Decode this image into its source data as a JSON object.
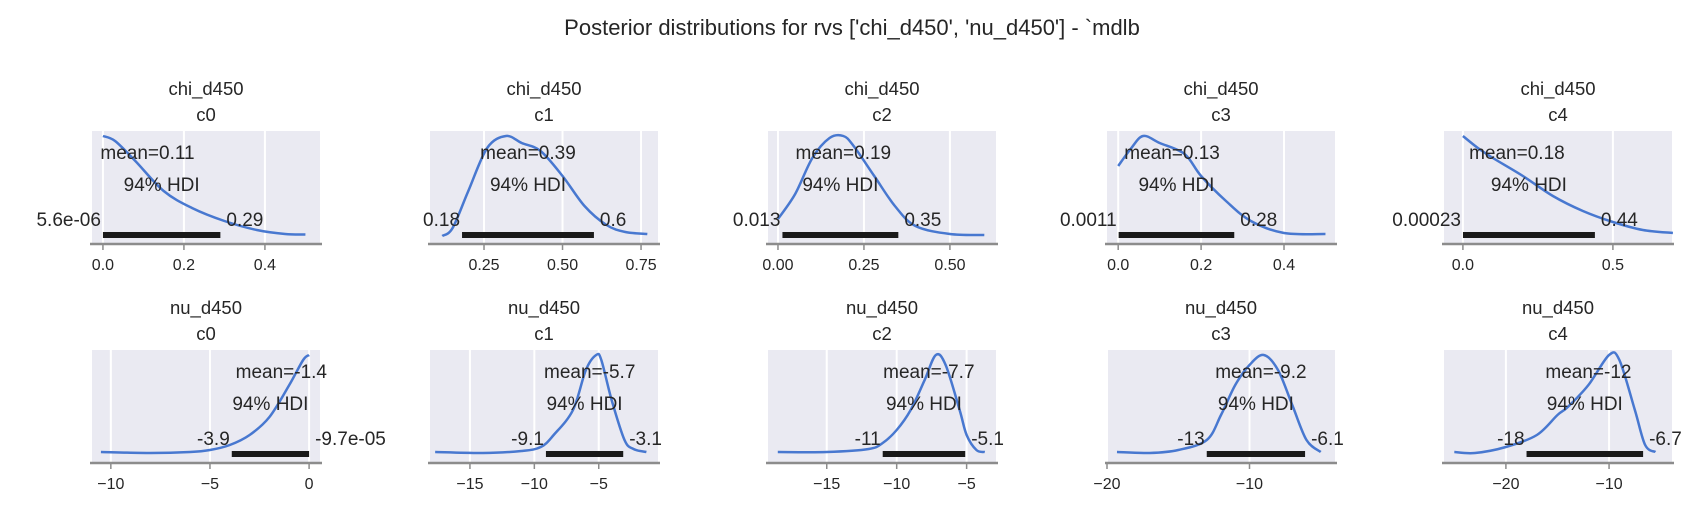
{
  "chart_data": {
    "type": "line",
    "title": "Posterior distributions for rvs ['chi_d450', 'nu_d450'] - `mdlb",
    "line_color": "#4878d0",
    "panel_bg": "#eaeaf2",
    "hdi_bar_color": "#1a1a1a",
    "hdi_label": "94% HDI",
    "panels": [
      {
        "var": "chi_d450",
        "coord": "c0",
        "row": 0,
        "col": 0,
        "xlim": [
          -0.027,
          0.536
        ],
        "ticks": [
          0,
          0.2,
          0.4
        ],
        "tick_labels": [
          "0.0",
          "0.2",
          "0.4"
        ],
        "mean": 0.11,
        "mean_label": "mean=0.11",
        "hdi": [
          5.6e-06,
          0.29
        ],
        "hdi_low_label": "5.6e-06",
        "hdi_high_label": "0.29",
        "kde": [
          [
            0,
            1
          ],
          [
            0.03,
            0.95
          ],
          [
            0.08,
            0.75
          ],
          [
            0.15,
            0.45
          ],
          [
            0.22,
            0.28
          ],
          [
            0.3,
            0.15
          ],
          [
            0.38,
            0.06
          ],
          [
            0.45,
            0.02
          ],
          [
            0.5,
            0.015
          ]
        ]
      },
      {
        "var": "chi_d450",
        "coord": "c1",
        "row": 0,
        "col": 1,
        "xlim": [
          0.078,
          0.804
        ],
        "ticks": [
          0.25,
          0.5,
          0.75
        ],
        "tick_labels": [
          "0.25",
          "0.50",
          "0.75"
        ],
        "mean": 0.39,
        "mean_label": "mean=0.39",
        "hdi": [
          0.18,
          0.6
        ],
        "hdi_low_label": "0.18",
        "hdi_high_label": "0.6",
        "kde": [
          [
            0.117,
            0
          ],
          [
            0.15,
            0.08
          ],
          [
            0.2,
            0.45
          ],
          [
            0.26,
            0.88
          ],
          [
            0.32,
            1.0
          ],
          [
            0.37,
            0.93
          ],
          [
            0.43,
            0.85
          ],
          [
            0.5,
            0.6
          ],
          [
            0.57,
            0.3
          ],
          [
            0.64,
            0.11
          ],
          [
            0.7,
            0.04
          ],
          [
            0.77,
            0.02
          ]
        ]
      },
      {
        "var": "chi_d450",
        "coord": "c2",
        "row": 0,
        "col": 2,
        "xlim": [
          -0.029,
          0.634
        ],
        "ticks": [
          0,
          0.25,
          0.5
        ],
        "tick_labels": [
          "0.00",
          "0.25",
          "0.50"
        ],
        "mean": 0.19,
        "mean_label": "mean=0.19",
        "hdi": [
          0.013,
          0.35
        ],
        "hdi_low_label": "0.013",
        "hdi_high_label": "0.35",
        "kde": [
          [
            0.0,
            0.17
          ],
          [
            0.05,
            0.42
          ],
          [
            0.1,
            0.78
          ],
          [
            0.15,
            0.98
          ],
          [
            0.19,
            1.0
          ],
          [
            0.22,
            0.9
          ],
          [
            0.28,
            0.6
          ],
          [
            0.34,
            0.3
          ],
          [
            0.4,
            0.1
          ],
          [
            0.5,
            0.02
          ],
          [
            0.6,
            0.01
          ]
        ]
      },
      {
        "var": "chi_d450",
        "coord": "c3",
        "row": 0,
        "col": 3,
        "xlim": [
          -0.027,
          0.523
        ],
        "ticks": [
          0,
          0.2,
          0.4
        ],
        "tick_labels": [
          "0.0",
          "0.2",
          "0.4"
        ],
        "mean": 0.13,
        "mean_label": "mean=0.13",
        "hdi": [
          0.0011,
          0.28
        ],
        "hdi_low_label": "0.0011",
        "hdi_high_label": "0.28",
        "kde": [
          [
            0,
            0.7
          ],
          [
            0.03,
            0.87
          ],
          [
            0.06,
            1.0
          ],
          [
            0.1,
            0.93
          ],
          [
            0.16,
            0.82
          ],
          [
            0.2,
            0.6
          ],
          [
            0.26,
            0.35
          ],
          [
            0.32,
            0.15
          ],
          [
            0.4,
            0.03
          ],
          [
            0.5,
            0.02
          ]
        ]
      },
      {
        "var": "chi_d450",
        "coord": "c4",
        "row": 0,
        "col": 4,
        "xlim": [
          -0.063,
          0.697
        ],
        "ticks": [
          0,
          0.5
        ],
        "tick_labels": [
          "0.0",
          "0.5"
        ],
        "mean": 0.18,
        "mean_label": "mean=0.18",
        "hdi": [
          0.00023,
          0.44
        ],
        "hdi_low_label": "0.00023",
        "hdi_high_label": "0.44",
        "kde": [
          [
            0,
            1
          ],
          [
            0.05,
            0.88
          ],
          [
            0.1,
            0.78
          ],
          [
            0.2,
            0.6
          ],
          [
            0.3,
            0.4
          ],
          [
            0.4,
            0.25
          ],
          [
            0.5,
            0.14
          ],
          [
            0.6,
            0.06
          ],
          [
            0.7,
            0.03
          ]
        ]
      },
      {
        "var": "nu_d450",
        "coord": "c0",
        "row": 1,
        "col": 0,
        "xlim": [
          -10.95,
          0.55
        ],
        "ticks": [
          -10,
          -5,
          0
        ],
        "tick_labels": [
          "−10",
          "−5",
          "0"
        ],
        "mean": -1.4,
        "mean_label": "mean=-1.4",
        "hdi": [
          -3.9,
          -9.7e-05
        ],
        "hdi_low_label": "-3.9",
        "hdi_high_label": "-9.7e-05",
        "kde": [
          [
            -10.5,
            0.03
          ],
          [
            -8,
            0.02
          ],
          [
            -6,
            0.03
          ],
          [
            -5,
            0.05
          ],
          [
            -4,
            0.1
          ],
          [
            -3,
            0.2
          ],
          [
            -2,
            0.38
          ],
          [
            -1,
            0.7
          ],
          [
            -0.3,
            0.95
          ],
          [
            0,
            1
          ]
        ]
      },
      {
        "var": "nu_d450",
        "coord": "c1",
        "row": 1,
        "col": 1,
        "xlim": [
          -18.1,
          -0.4
        ],
        "ticks": [
          -15,
          -10,
          -5
        ],
        "tick_labels": [
          "−15",
          "−10",
          "−5"
        ],
        "mean": -5.7,
        "mean_label": "mean=-5.7",
        "hdi": [
          -9.1,
          -3.1
        ],
        "hdi_low_label": "-9.1",
        "hdi_high_label": "-3.1",
        "kde": [
          [
            -17.7,
            0.03
          ],
          [
            -14,
            0.02
          ],
          [
            -11,
            0.04
          ],
          [
            -9.5,
            0.08
          ],
          [
            -8.5,
            0.2
          ],
          [
            -7,
            0.45
          ],
          [
            -6,
            0.85
          ],
          [
            -5.2,
            1.0
          ],
          [
            -4.8,
            0.95
          ],
          [
            -4,
            0.55
          ],
          [
            -3,
            0.15
          ],
          [
            -2.3,
            0.06
          ],
          [
            -1.3,
            0.03
          ]
        ]
      },
      {
        "var": "nu_d450",
        "coord": "c2",
        "row": 1,
        "col": 2,
        "xlim": [
          -19.2,
          -2.9
        ],
        "ticks": [
          -15,
          -10,
          -5
        ],
        "tick_labels": [
          "−15",
          "−10",
          "−5"
        ],
        "mean": -7.7,
        "mean_label": "mean=-7.7",
        "hdi": [
          -11,
          -5.1
        ],
        "hdi_low_label": "-11",
        "hdi_high_label": "-5.1",
        "kde": [
          [
            -18.5,
            0.03
          ],
          [
            -15,
            0.03
          ],
          [
            -12,
            0.06
          ],
          [
            -11,
            0.12
          ],
          [
            -10,
            0.25
          ],
          [
            -9,
            0.45
          ],
          [
            -8,
            0.75
          ],
          [
            -7.2,
            1.0
          ],
          [
            -6.5,
            0.9
          ],
          [
            -5.5,
            0.45
          ],
          [
            -5,
            0.2
          ],
          [
            -4.3,
            0.05
          ],
          [
            -3.7,
            0.03
          ]
        ]
      },
      {
        "var": "nu_d450",
        "coord": "c3",
        "row": 1,
        "col": 3,
        "xlim": [
          -20.0,
          -4.0
        ],
        "ticks": [
          -20,
          -10
        ],
        "tick_labels": [
          "−20",
          "−10"
        ],
        "mean": -9.2,
        "mean_label": "mean=-9.2",
        "hdi": [
          -13,
          -6.1
        ],
        "hdi_low_label": "-13",
        "hdi_high_label": "-6.1",
        "kde": [
          [
            -19.3,
            0.03
          ],
          [
            -17,
            0.02
          ],
          [
            -15,
            0.05
          ],
          [
            -13,
            0.15
          ],
          [
            -12,
            0.4
          ],
          [
            -11,
            0.7
          ],
          [
            -10,
            0.9
          ],
          [
            -9,
            1.0
          ],
          [
            -8,
            0.85
          ],
          [
            -7,
            0.5
          ],
          [
            -6,
            0.15
          ],
          [
            -5,
            0.03
          ]
        ]
      },
      {
        "var": "nu_d450",
        "coord": "c4",
        "row": 1,
        "col": 4,
        "xlim": [
          -26.0,
          -3.9
        ],
        "ticks": [
          -20,
          -10
        ],
        "tick_labels": [
          "−20",
          "−10"
        ],
        "mean": -12,
        "mean_label": "mean=-12",
        "hdi": [
          -18,
          -6.7
        ],
        "hdi_low_label": "-18",
        "hdi_high_label": "-6.7",
        "kde": [
          [
            -25,
            0.03
          ],
          [
            -23,
            0.02
          ],
          [
            -20,
            0.08
          ],
          [
            -17,
            0.2
          ],
          [
            -15,
            0.4
          ],
          [
            -14,
            0.48
          ],
          [
            -12,
            0.7
          ],
          [
            -10,
            1.0
          ],
          [
            -9,
            0.95
          ],
          [
            -7.5,
            0.45
          ],
          [
            -6.5,
            0.1
          ],
          [
            -5.5,
            0.03
          ]
        ]
      }
    ]
  }
}
